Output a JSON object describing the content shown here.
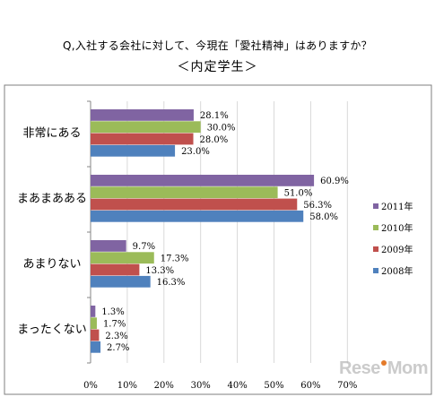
{
  "title": "Q,入社する会社に対して、今現在「愛社精神」はありますか？",
  "subtitle": "＜内定学生＞",
  "watermark": "ReseMom",
  "chart_data": {
    "type": "bar",
    "orientation": "horizontal",
    "categories": [
      "非常にある",
      "まあまあある",
      "あまりない",
      "まったくない"
    ],
    "series": [
      {
        "name": "2011年",
        "color": "#8064a2",
        "values": [
          28.1,
          60.9,
          9.7,
          1.3
        ]
      },
      {
        "name": "2010年",
        "color": "#9bbb59",
        "values": [
          30.0,
          51.0,
          17.3,
          1.7
        ]
      },
      {
        "name": "2009年",
        "color": "#c0504d",
        "values": [
          28.0,
          56.3,
          13.3,
          2.3
        ]
      },
      {
        "name": "2008年",
        "color": "#4f81bd",
        "values": [
          23.0,
          58.0,
          16.3,
          2.7
        ]
      }
    ],
    "data_labels": [
      [
        "28.1%",
        "60.9%",
        "9.7%",
        "1.3%"
      ],
      [
        "30.0%",
        "51.0%",
        "17.3%",
        "1.7%"
      ],
      [
        "28.0%",
        "56.3%",
        "13.3%",
        "2.3%"
      ],
      [
        "23.0%",
        "58.0%",
        "16.3%",
        "2.7%"
      ]
    ],
    "xlim": [
      0,
      70
    ],
    "xticks": [
      "0%",
      "10%",
      "20%",
      "30%",
      "40%",
      "50%",
      "60%",
      "70%"
    ],
    "grid": true,
    "legend": "right"
  }
}
